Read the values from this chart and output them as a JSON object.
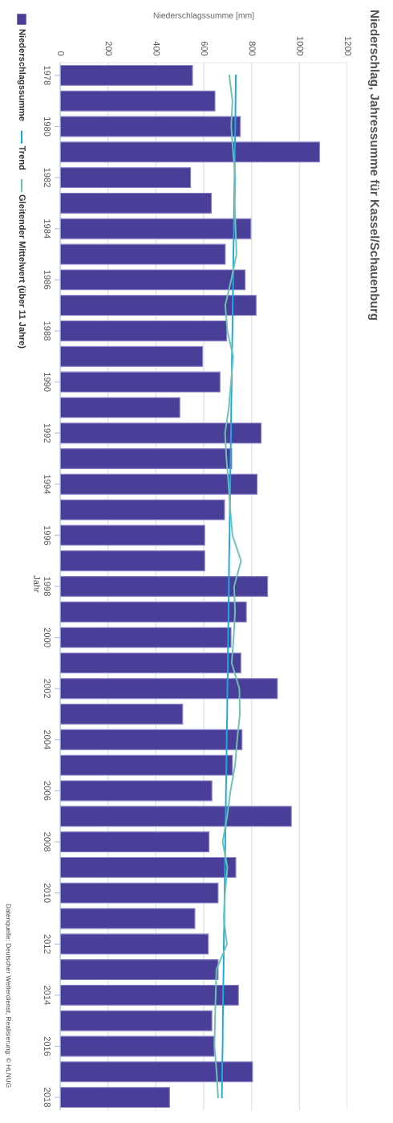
{
  "chart_data": {
    "type": "bar",
    "orientation": "horizontal",
    "title": "Niederschlag, Jahressumme für Kassel/Schauenburg",
    "xlabel": "Niederschlagssumme [mm]",
    "ylabel": "Jahr",
    "categories": [
      "1978",
      null,
      "1980",
      null,
      "1982",
      null,
      "1984",
      null,
      "1986",
      null,
      "1988",
      null,
      "1990",
      null,
      "1992",
      null,
      "1994",
      null,
      "1996",
      null,
      "1998",
      null,
      "2000",
      null,
      "2002",
      null,
      "2004",
      null,
      "2006",
      null,
      "2008",
      null,
      "2010",
      null,
      "2012",
      null,
      "2014",
      null,
      "2016",
      null,
      "2018"
    ],
    "series": [
      {
        "name": "Niederschlagssumme",
        "color": "#4a3f98",
        "values": [
          553,
          647,
          753,
          1084,
          545,
          632,
          797,
          690,
          773,
          819,
          696,
          595,
          668,
          500,
          840,
          717,
          823,
          687,
          604,
          604,
          867,
          778,
          714,
          755,
          908,
          512,
          760,
          720,
          634,
          966,
          622,
          734,
          660,
          563,
          619,
          660,
          745,
          634,
          644,
          804,
          457
        ]
      },
      {
        "name": "Trend",
        "type": "line",
        "color": "#1ea8e0",
        "values": [
          734,
          733,
          732,
          730,
          729,
          727,
          726,
          724,
          723,
          721,
          720,
          718,
          717,
          715,
          714,
          712,
          711,
          709,
          708,
          706,
          705,
          704,
          702,
          701,
          699,
          698,
          696,
          695,
          693,
          692,
          690,
          689,
          687,
          686,
          684,
          683,
          681,
          680,
          679,
          677,
          676
        ]
      },
      {
        "name": "Gleitender Mittelwert (über 11 Jahre)",
        "type": "line",
        "color": "#6cc3b4",
        "values": [
          707,
          720,
          715,
          723,
          732,
          730,
          733,
          737,
          715,
          690,
          699,
          723,
          714,
          705,
          689,
          695,
          704,
          711,
          720,
          756,
          727,
          731,
          725,
          717,
          749,
          751,
          740,
          731,
          712,
          698,
          679,
          699,
          689,
          684,
          697,
          653,
          650,
          647,
          645,
          654,
          660
        ]
      }
    ],
    "xlim": [
      0,
      1200
    ],
    "xticks": [
      0,
      200,
      400,
      600,
      800,
      1000,
      1200
    ],
    "grid": "x",
    "legend": "left",
    "annotations": [
      "Datenquelle: Deutscher Wetterdienst, Realisierung: © HLNUG"
    ]
  }
}
